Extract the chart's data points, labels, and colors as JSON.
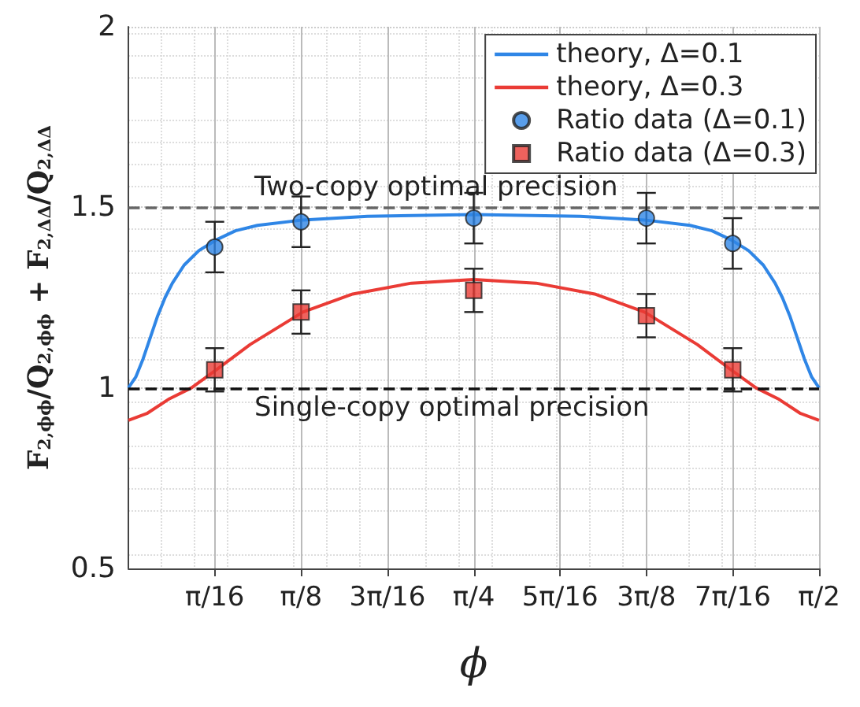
{
  "chart_data": {
    "type": "line",
    "xlabel": "ϕ",
    "ylabel": "F$_{2,ϕϕ}$/Q$_{2,ϕϕ}$ + F$_{2,ΔΔ}$/Q$_{2,ΔΔ}$",
    "xlim": [
      0,
      1.5708
    ],
    "ylim": [
      0.5,
      2
    ],
    "xticks": [
      {
        "value": 0.19635,
        "label": "π/16"
      },
      {
        "value": 0.3927,
        "label": "π/8"
      },
      {
        "value": 0.58905,
        "label": "3π/16"
      },
      {
        "value": 0.7854,
        "label": "π/4"
      },
      {
        "value": 0.98175,
        "label": "5π/16"
      },
      {
        "value": 1.1781,
        "label": "3π/8"
      },
      {
        "value": 1.37445,
        "label": "7π/16"
      },
      {
        "value": 1.5708,
        "label": "π/2"
      }
    ],
    "yticks": [
      0.5,
      1,
      1.5,
      2
    ],
    "grid": true,
    "legend": "top right",
    "series": [
      {
        "name": "theory, Δ=0.1",
        "color": "#2f86e6",
        "marker": "none",
        "x": [
          0,
          0.0167,
          0.0333,
          0.05,
          0.0667,
          0.0834,
          0.1,
          0.1267,
          0.1601,
          0.2001,
          0.2435,
          0.2935,
          0.3969,
          0.5436,
          0.7854,
          1.0272,
          1.1739,
          1.2773,
          1.3273,
          1.3707,
          1.4107,
          1.4441,
          1.4708,
          1.4874,
          1.5041,
          1.5208,
          1.5375,
          1.5541,
          1.5708
        ],
        "values": [
          1.0,
          1.03,
          1.08,
          1.14,
          1.2,
          1.25,
          1.29,
          1.34,
          1.38,
          1.41,
          1.435,
          1.45,
          1.465,
          1.475,
          1.48,
          1.475,
          1.465,
          1.45,
          1.435,
          1.41,
          1.38,
          1.34,
          1.29,
          1.25,
          1.2,
          1.14,
          1.08,
          1.03,
          1.0
        ]
      },
      {
        "name": "theory, Δ=0.3",
        "color": "#ea3b35",
        "marker": "none",
        "x": [
          0,
          0.0434,
          0.0934,
          0.1434,
          0.2001,
          0.2768,
          0.3969,
          0.5103,
          0.6437,
          0.7854,
          0.9271,
          1.0605,
          1.1739,
          1.294,
          1.3707,
          1.4274,
          1.4774,
          1.5274,
          1.5708
        ],
        "values": [
          0.91,
          0.93,
          0.97,
          1.0,
          1.05,
          1.12,
          1.21,
          1.26,
          1.29,
          1.3,
          1.29,
          1.26,
          1.21,
          1.12,
          1.05,
          1.0,
          0.97,
          0.93,
          0.91
        ]
      },
      {
        "name": "Ratio data (Δ=0.1)",
        "type": "scatter",
        "color": "#2f86e6",
        "marker": "circle",
        "x": [
          0.19635,
          0.3927,
          0.7854,
          1.1781,
          1.37445
        ],
        "values": [
          1.39,
          1.46,
          1.47,
          1.47,
          1.4
        ],
        "errors": [
          0.07,
          0.07,
          0.07,
          0.07,
          0.07
        ]
      },
      {
        "name": "Ratio data (Δ=0.3)",
        "type": "scatter",
        "color": "#ea3b35",
        "marker": "square",
        "x": [
          0.19635,
          0.3927,
          0.7854,
          1.1781,
          1.37445
        ],
        "values": [
          1.05,
          1.21,
          1.27,
          1.2,
          1.05
        ],
        "errors": [
          0.06,
          0.06,
          0.06,
          0.06,
          0.06
        ]
      }
    ],
    "ref_lines": [
      {
        "axis": "y",
        "value": 1.5,
        "label": "Two-copy optimal precision",
        "color": "#666666",
        "line_style": "dashed"
      },
      {
        "axis": "y",
        "value": 1,
        "label": "Single-copy optimal precision",
        "color": "#111111",
        "line_style": "dashed"
      }
    ]
  }
}
